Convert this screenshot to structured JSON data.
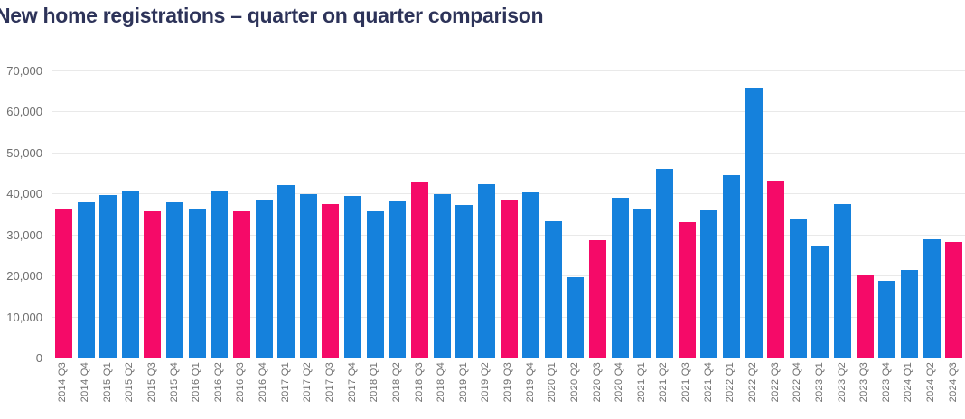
{
  "title": "New home registrations – quarter on quarter comparison",
  "styles": {
    "title_color": "#2d3359",
    "axis_label_color": "#6e6e6e",
    "gridline_color": "#e9e9e9",
    "background": "#ffffff"
  },
  "chart_data": {
    "type": "bar",
    "title": "New home registrations – quarter on quarter comparison",
    "xlabel": "",
    "ylabel": "",
    "ylim": [
      0,
      70000
    ],
    "ytick_interval": 10000,
    "yticks": [
      "0",
      "10,000",
      "20,000",
      "30,000",
      "40,000",
      "50,000",
      "60,000",
      "70,000"
    ],
    "grid": "horizontal",
    "legend": "none",
    "highlight_rule": "Q3 quarters shown in pink, all other quarters in blue",
    "colors": {
      "default": "#1581dc",
      "q3_highlight": "#f50a68"
    },
    "categories": [
      "2014 Q3",
      "2014 Q4",
      "2015 Q1",
      "2015 Q2",
      "2015 Q3",
      "2015 Q4",
      "2016 Q1",
      "2016 Q2",
      "2016 Q3",
      "2016 Q4",
      "2017 Q1",
      "2017 Q2",
      "2017 Q3",
      "2017 Q4",
      "2018 Q1",
      "2018 Q2",
      "2018 Q3",
      "2018 Q4",
      "2019 Q1",
      "2019 Q2",
      "2019 Q3",
      "2019 Q4",
      "2020 Q1",
      "2020 Q2",
      "2020 Q3",
      "2020 Q4",
      "2021 Q1",
      "2021 Q2",
      "2021 Q3",
      "2021 Q4",
      "2022 Q1",
      "2022 Q2",
      "2022 Q3",
      "2022 Q4",
      "2023 Q1",
      "2023 Q2",
      "2023 Q3",
      "2023 Q4",
      "2024 Q1",
      "2024 Q2",
      "2024 Q3"
    ],
    "values": [
      36500,
      38000,
      39900,
      40700,
      35900,
      38200,
      36400,
      40700,
      35900,
      38500,
      42200,
      40100,
      37700,
      39600,
      35900,
      38300,
      43100,
      40100,
      37400,
      42500,
      38500,
      40500,
      33400,
      19800,
      28800,
      39300,
      36500,
      46200,
      33300,
      36100,
      44800,
      66000,
      43300,
      34000,
      27500,
      37700,
      20400,
      19000,
      21600,
      29100,
      28400
    ]
  }
}
